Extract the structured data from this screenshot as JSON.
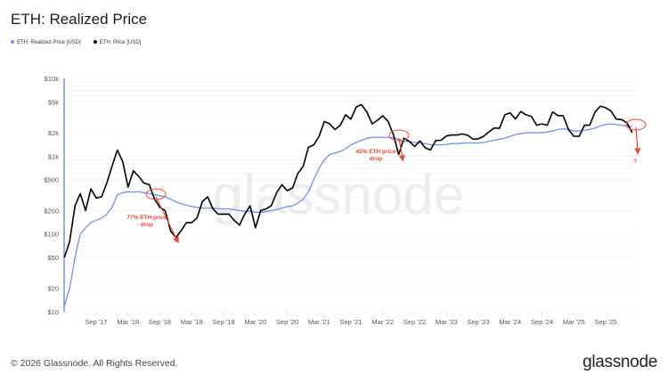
{
  "chart_data": {
    "type": "line",
    "title": "ETH: Realized Price",
    "yscale": "log",
    "ylim": [
      10,
      10000
    ],
    "y_ticks": [
      {
        "v": 10,
        "label": "$10"
      },
      {
        "v": 20,
        "label": "$20"
      },
      {
        "v": 50,
        "label": "$50"
      },
      {
        "v": 100,
        "label": "$100"
      },
      {
        "v": 200,
        "label": "$200"
      },
      {
        "v": 500,
        "label": "$500"
      },
      {
        "v": 1000,
        "label": "$1k"
      },
      {
        "v": 2000,
        "label": "$2k"
      },
      {
        "v": 5000,
        "label": "$5k"
      },
      {
        "v": 10000,
        "label": "$10k"
      }
    ],
    "x_ticks": [
      {
        "d": "2017-09",
        "label": "Sep '17"
      },
      {
        "d": "2018-03",
        "label": "Mar '18"
      },
      {
        "d": "2018-09",
        "label": "Sep '18"
      },
      {
        "d": "2019-03",
        "label": "Mar '19"
      },
      {
        "d": "2019-09",
        "label": "Sep '19"
      },
      {
        "d": "2020-03",
        "label": "Mar '20"
      },
      {
        "d": "2020-09",
        "label": "Sep '20"
      },
      {
        "d": "2021-03",
        "label": "Mar '21"
      },
      {
        "d": "2021-09",
        "label": "Sep '21"
      },
      {
        "d": "2022-03",
        "label": "Mar '22"
      },
      {
        "d": "2022-09",
        "label": "Sep '22"
      },
      {
        "d": "2023-03",
        "label": "Mar '23"
      },
      {
        "d": "2023-09",
        "label": "Sep '23"
      },
      {
        "d": "2024-03",
        "label": "Mar '24"
      },
      {
        "d": "2024-09",
        "label": "Sep '24"
      },
      {
        "d": "2025-03",
        "label": "Mar '25"
      },
      {
        "d": "2025-09",
        "label": "Sep '25"
      }
    ],
    "x_start": "2017-03",
    "grid": true,
    "legend_position": "top-left",
    "series": [
      {
        "name": "ETH: Realized Price [USD]",
        "color": "#6f8ff5",
        "values": [
          12,
          20,
          50,
          100,
          120,
          140,
          150,
          160,
          180,
          220,
          320,
          340,
          350,
          345,
          350,
          340,
          330,
          320,
          310,
          300,
          280,
          260,
          245,
          235,
          225,
          220,
          215,
          215,
          215,
          210,
          210,
          210,
          205,
          200,
          195,
          195,
          190,
          190,
          195,
          200,
          205,
          215,
          225,
          230,
          250,
          280,
          350,
          500,
          700,
          900,
          1050,
          1100,
          1150,
          1250,
          1400,
          1500,
          1600,
          1700,
          1750,
          1750,
          1750,
          1750,
          1720,
          1650,
          1550,
          1550,
          1500,
          1500,
          1450,
          1400,
          1400,
          1400,
          1420,
          1450,
          1450,
          1470,
          1480,
          1480,
          1480,
          1500,
          1550,
          1600,
          1650,
          1700,
          1800,
          1900,
          1950,
          2000,
          2000,
          2000,
          2000,
          2050,
          2100,
          2200,
          2250,
          2200,
          2100,
          2100,
          2150,
          2200,
          2300,
          2450,
          2550,
          2600,
          2550,
          2500,
          2450,
          2400
        ]
      },
      {
        "name": "ETH: Price [USD]",
        "color": "#000000",
        "values": [
          50,
          80,
          230,
          330,
          200,
          380,
          290,
          300,
          450,
          750,
          1200,
          850,
          400,
          650,
          550,
          450,
          430,
          280,
          220,
          200,
          110,
          90,
          110,
          140,
          140,
          160,
          260,
          300,
          210,
          180,
          180,
          180,
          150,
          130,
          180,
          230,
          120,
          200,
          210,
          230,
          340,
          430,
          360,
          390,
          600,
          740,
          1300,
          1400,
          1800,
          2800,
          2600,
          2200,
          2500,
          3400,
          3000,
          4300,
          4600,
          3700,
          2600,
          2900,
          3300,
          2800,
          1900,
          1050,
          1700,
          1550,
          1330,
          1570,
          1280,
          1200,
          1590,
          1600,
          1820,
          1870,
          1870,
          1930,
          1860,
          1650,
          1670,
          1800,
          2050,
          2300,
          2280,
          3400,
          3600,
          3000,
          3750,
          3400,
          3250,
          2500,
          2600,
          2500,
          3700,
          3330,
          3300,
          2200,
          1800,
          1800,
          2500,
          2500,
          3700,
          4400,
          4200,
          3800,
          3000,
          2950,
          2700,
          2000
        ]
      }
    ],
    "annotations": [
      {
        "text_line1": "77% ETH price",
        "text_line2": "drop",
        "from": "2018-08",
        "to": "2018-12"
      },
      {
        "text_line1": "45% ETH price",
        "text_line2": "drop",
        "from": "2022-05",
        "to": "2022-06"
      },
      {
        "text_line1": "?",
        "from": "2026-02",
        "to": "2026-02"
      }
    ],
    "annotation_color": "#f2452e"
  },
  "watermark": "glassnode",
  "footer": {
    "copyright": "© 2026 Glassnode. All Rights Reserved.",
    "logo": "glassnode"
  }
}
